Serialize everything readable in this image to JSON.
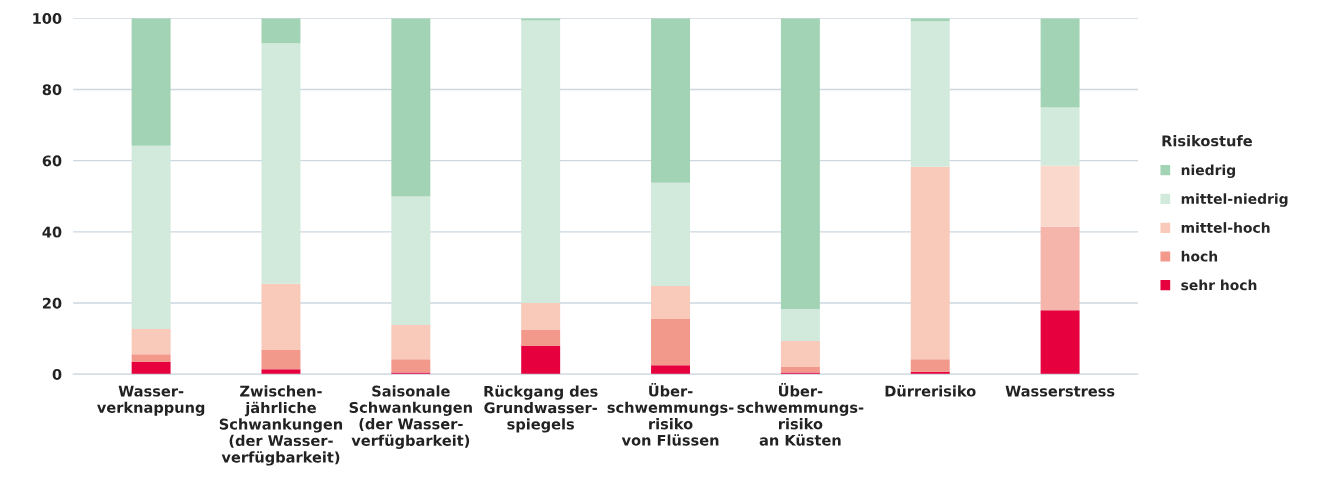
{
  "chart_data": {
    "type": "bar",
    "stacked": true,
    "categories": [
      "Wasser-\nverknappung",
      "Zwischen-\njährliche\nSchwankungen\n(der Wasser-\nverfügbarkeit)",
      "Saisonale\nSchwankungen\n(der Wasser-\nverfügbarkeit)",
      "Rückgang des\nGrundwasser-\nspiegels",
      "Über-\nschwemmungs-\nrisiko\nvon Flüssen",
      "Über-\nschwemmungs-\nrisiko\nan Küsten",
      "Dürrerisiko",
      "Wasserstress"
    ],
    "series": [
      {
        "name": "sehr hoch",
        "color": "#e6003e",
        "values": [
          3.4,
          1.4,
          0.5,
          7.9,
          2.5,
          0.5,
          0.7,
          18
        ]
      },
      {
        "name": "hoch",
        "color": "#f2998c",
        "colors": [
          "#f2998c",
          "#f2998c",
          "#f2998c",
          "#f2998c",
          "#f2998c",
          "#f2998c",
          "#f2998c",
          "#f5b5aa"
        ],
        "values": [
          2.2,
          5.4,
          3.7,
          4.5,
          13,
          1.5,
          3.5,
          23.4
        ]
      },
      {
        "name": "mittel-hoch",
        "color": "#f9c9ba",
        "colors": [
          "#f9c9ba",
          "#f9c9ba",
          "#f9c9ba",
          "#f9c9ba",
          "#f9c9ba",
          "#f9c9ba",
          "#f9c9ba",
          "#fad8cc"
        ],
        "values": [
          7.1,
          18.6,
          9.6,
          7.6,
          9.3,
          7.3,
          54.1,
          17.2
        ]
      },
      {
        "name": "mittel-niedrig",
        "color": "#d2eadc",
        "values": [
          51.5,
          67.6,
          36.1,
          79.4,
          29,
          9,
          40.9,
          16.3
        ]
      },
      {
        "name": "niedrig",
        "color": "#a2d3b5",
        "values": [
          35.8,
          7,
          50.1,
          0.6,
          46.2,
          81.7,
          0.8,
          25.1
        ]
      }
    ],
    "legend_title": "Risikostufe",
    "legend": "right",
    "ylim": [
      0,
      100
    ],
    "yticks": [
      0,
      20,
      40,
      60,
      80,
      100
    ],
    "grid": "y"
  }
}
